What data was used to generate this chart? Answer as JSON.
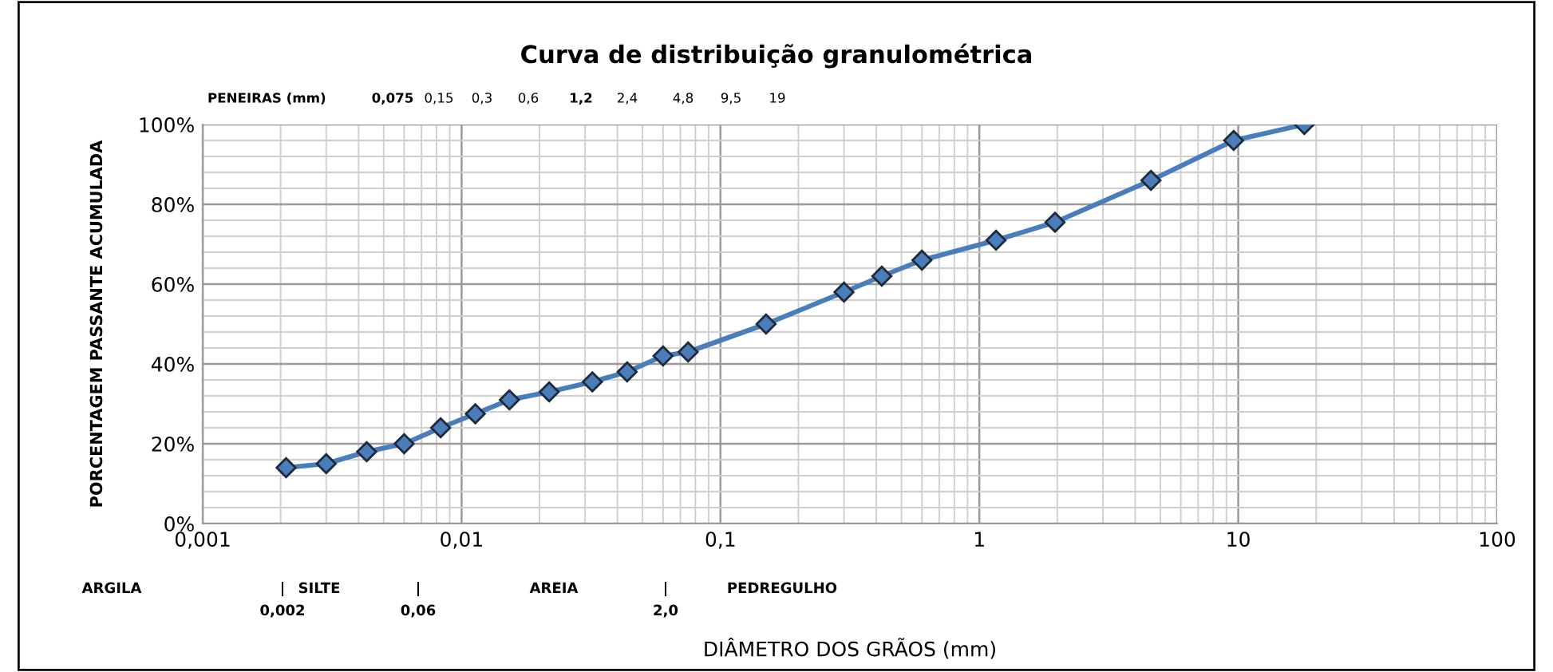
{
  "chart_data": {
    "type": "line",
    "title": "Curva de distribuição granulométrica",
    "xlabel": "DIÂMETRO DOS GRÃOS (mm)",
    "ylabel": "PORCENTAGEM PASSANTE ACUMULADA",
    "log": "x",
    "grid": true,
    "marker": "diamond",
    "line_style": "solid",
    "xlim": [
      0.001,
      100
    ],
    "xticks": [
      {
        "value": 0.001,
        "label": "0,001"
      },
      {
        "value": 0.01,
        "label": "0,01"
      },
      {
        "value": 0.1,
        "label": "0,1"
      },
      1,
      10,
      100
    ],
    "ylim": [
      0,
      100
    ],
    "yticks": [
      {
        "value": 0,
        "label": "0%"
      },
      {
        "value": 20,
        "label": "20%"
      },
      {
        "value": 40,
        "label": "40%"
      },
      {
        "value": 60,
        "label": "60%"
      },
      {
        "value": 80,
        "label": "80%"
      },
      {
        "value": 100,
        "label": "100%"
      }
    ],
    "series": [
      {
        "color": "#4a7ebb",
        "x": [
          0.0021,
          0.003,
          0.0043,
          0.006,
          0.0083,
          0.0113,
          0.0153,
          0.0218,
          0.032,
          0.0436,
          0.06,
          0.075,
          0.15,
          0.3,
          0.42,
          0.6,
          1.16,
          1.96,
          4.6,
          9.6,
          18
        ],
        "values": [
          14,
          15,
          18,
          20,
          24,
          27.5,
          31,
          33,
          35.5,
          38,
          42,
          43,
          50,
          58,
          62,
          66,
          71,
          75.5,
          86,
          96,
          100
        ]
      }
    ],
    "annotations": [
      "PENEIRAS (mm)",
      "0,075",
      "0,15",
      "0,3",
      "0,6",
      "1,2",
      "2,4",
      "4,8",
      "9,5",
      "19",
      "ARGILA",
      "|",
      "0,002",
      "SILTE",
      "|",
      "0,06",
      "AREIA",
      "|",
      "2,0",
      "PEDREGULHO"
    ]
  }
}
